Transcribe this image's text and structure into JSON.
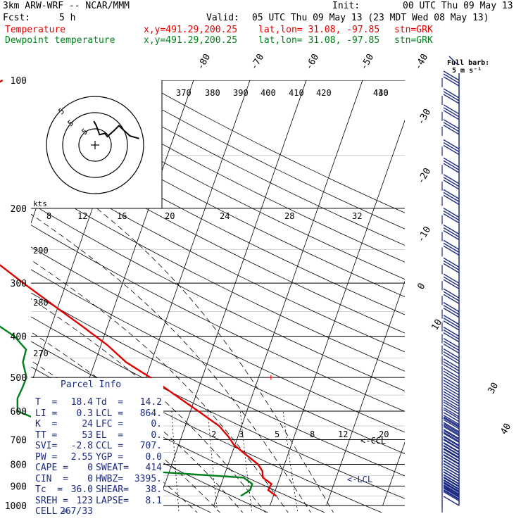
{
  "header": {
    "model": "3km ARW-WRF -- NCAR/MMM",
    "init_label": "Init:",
    "init": "00 UTC Thu 09 May 13",
    "fcst_label": "Fcst:",
    "fcst": "5 h",
    "valid_label": "Valid:",
    "valid": "05 UTC Thu 09 May 13 (23 MDT Wed 08 May 13)",
    "temp_label": "Temperature",
    "dew_label": "Dewpoint temperature",
    "xy": "x,y=491.29,200.25",
    "latlon": "lat,lon= 31.08, -97.85",
    "stn": "stn=GRK",
    "barb_legend": "Full barb:",
    "barb_unit": "5 m s⁻¹"
  },
  "colors": {
    "temperature": "#e00000",
    "dewpoint": "#00801a",
    "hodograph": "#000000",
    "barbs": "#1c2a80",
    "indices": "#1c2a80"
  },
  "parcel_info": {
    "title": "Parcel Info",
    "rows": [
      [
        "T  =",
        "18.4",
        "Td  =",
        "14.2"
      ],
      [
        "LI =",
        "0.3",
        "LCL =",
        "864."
      ],
      [
        "K  =",
        "24",
        "LFC =",
        "0."
      ],
      [
        "TT =",
        "53",
        "EL  =",
        "0."
      ],
      [
        "SVI=",
        "-2.8",
        "CCL =",
        "707."
      ],
      [
        "PW =",
        "2.55",
        "YGP =",
        "0.0"
      ],
      [
        "CAPE =",
        "0",
        "SWEAT=",
        "414"
      ],
      [
        "CIN  =",
        "0",
        "HWBZ=",
        "3395."
      ],
      [
        "Tc  =",
        "36.0",
        "SHEAR=",
        "38."
      ],
      [
        "SREH =",
        "123",
        "LAPSE=",
        "8.1"
      ],
      [
        "CELL =",
        "267/33",
        "",
        ""
      ]
    ]
  },
  "annotations": {
    "ccl": "<-CCL",
    "lcl": "<-LCL",
    "hodo_units": "kts",
    "lcl_marker": "+"
  },
  "chart_data": {
    "type": "skewt-logp",
    "y_axis": {
      "name": "pressure",
      "scale": "log",
      "range": [
        1000,
        100
      ],
      "tick_labels": [
        "100",
        "200",
        "300",
        "400",
        "500",
        "600",
        "700",
        "800",
        "900",
        "1000"
      ]
    },
    "isotherm_labels": [
      "-80",
      "-70",
      "-60",
      "-50",
      "-40",
      "-30",
      "-20",
      "-10",
      "0",
      "10",
      "30",
      "40"
    ],
    "theta_labels": [
      "370",
      "380",
      "390",
      "400",
      "410",
      "420",
      "430",
      "440",
      "290",
      "280",
      "270"
    ],
    "mixing_ratio_labels": [
      "2",
      "3",
      "5",
      "8",
      "12",
      "20"
    ],
    "hodograph_ring_labels": [
      "8",
      "12",
      "16",
      "20",
      "24",
      "28",
      "32"
    ],
    "hodograph_inner_labels": [
      "5",
      "5",
      "5"
    ],
    "series": [
      {
        "name": "Temperature",
        "points": [
          {
            "p": 950,
            "t": 20.5
          },
          {
            "p": 920,
            "t": 18.7
          },
          {
            "p": 890,
            "t": 18.9
          },
          {
            "p": 860,
            "t": 17.0
          },
          {
            "p": 830,
            "t": 16.5
          },
          {
            "p": 800,
            "t": 15.3
          },
          {
            "p": 760,
            "t": 12.6
          },
          {
            "p": 720,
            "t": 9.8
          },
          {
            "p": 690,
            "t": 8.4
          },
          {
            "p": 650,
            "t": 6.0
          },
          {
            "p": 600,
            "t": 1.4
          },
          {
            "p": 550,
            "t": -3.7
          },
          {
            "p": 500,
            "t": -9.2
          },
          {
            "p": 460,
            "t": -14.5
          },
          {
            "p": 420,
            "t": -18.8
          },
          {
            "p": 380,
            "t": -24.3
          },
          {
            "p": 340,
            "t": -30.6
          },
          {
            "p": 300,
            "t": -37.6
          },
          {
            "p": 265,
            "t": -44.3
          },
          {
            "p": 235,
            "t": -50.0
          },
          {
            "p": 210,
            "t": -55.7
          },
          {
            "p": 190,
            "t": -61.1
          },
          {
            "p": 170,
            "t": -64.1
          },
          {
            "p": 155,
            "t": -66.5
          },
          {
            "p": 140,
            "t": -65.8
          },
          {
            "p": 130,
            "t": -64.5
          },
          {
            "p": 120,
            "t": -61.6
          },
          {
            "p": 113,
            "t": -59.3
          },
          {
            "p": 105,
            "t": -56.2
          },
          {
            "p": 100,
            "t": -53.9
          }
        ]
      },
      {
        "name": "Dewpoint temperature",
        "points": [
          {
            "p": 950,
            "t": 14.2
          },
          {
            "p": 920,
            "t": 15.5
          },
          {
            "p": 890,
            "t": 15.5
          },
          {
            "p": 860,
            "t": 13.6
          },
          {
            "p": 830,
            "t": -4.5
          },
          {
            "p": 790,
            "t": -7.0
          },
          {
            "p": 760,
            "t": -7.1
          },
          {
            "p": 730,
            "t": -10.7
          },
          {
            "p": 690,
            "t": -13.6
          },
          {
            "p": 650,
            "t": -21.6
          },
          {
            "p": 620,
            "t": -27.7
          },
          {
            "p": 600,
            "t": -30.7
          },
          {
            "p": 560,
            "t": -31.5
          },
          {
            "p": 530,
            "t": -31.3
          },
          {
            "p": 500,
            "t": -31.2
          },
          {
            "p": 460,
            "t": -32.8
          },
          {
            "p": 430,
            "t": -33.0
          },
          {
            "p": 400,
            "t": -35.9
          },
          {
            "p": 370,
            "t": -40.6
          },
          {
            "p": 350,
            "t": -45.8
          },
          {
            "p": 330,
            "t": -48.4
          },
          {
            "p": 300,
            "t": -51.2
          },
          {
            "p": 275,
            "t": -55.9
          },
          {
            "p": 250,
            "t": -61.0
          },
          {
            "p": 225,
            "t": -66.2
          },
          {
            "p": 200,
            "t": -71.8
          },
          {
            "p": 180,
            "t": -77.4
          },
          {
            "p": 165,
            "t": -82.6
          },
          {
            "p": 150,
            "t": -88.0
          },
          {
            "p": 140,
            "t": -90.0
          },
          {
            "p": 130,
            "t": -88.9
          },
          {
            "p": 120,
            "t": -86.6
          },
          {
            "p": 112,
            "t": -84.9
          },
          {
            "p": 106,
            "t": -83.8
          },
          {
            "p": 100,
            "t": -82.6
          }
        ]
      }
    ],
    "hodograph": [
      {
        "u": 13.6,
        "v": 2.0
      },
      {
        "u": 10.8,
        "v": 2.8
      },
      {
        "u": 8.8,
        "v": 4.6
      },
      {
        "u": 7.4,
        "v": 6.0
      },
      {
        "u": 6.0,
        "v": 4.6
      },
      {
        "u": 3.8,
        "v": 2.6
      },
      {
        "u": 3.0,
        "v": 3.6
      },
      {
        "u": 1.4,
        "v": 3.2
      },
      {
        "u": 0.4,
        "v": 6.0
      },
      {
        "u": -0.4,
        "v": 7.4
      }
    ],
    "wind_barbs": [
      {
        "p": 1000,
        "n": 1
      },
      {
        "p": 975,
        "n": 1
      },
      {
        "p": 950,
        "n": 2
      },
      {
        "p": 925,
        "n": 4
      },
      {
        "p": 900,
        "n": 5
      },
      {
        "p": 875,
        "n": 6
      },
      {
        "p": 850,
        "n": 7
      },
      {
        "p": 825,
        "n": 7
      },
      {
        "p": 800,
        "n": 6
      },
      {
        "p": 775,
        "n": 6
      },
      {
        "p": 750,
        "n": 5
      },
      {
        "p": 725,
        "n": 5
      },
      {
        "p": 700,
        "n": 4
      },
      {
        "p": 675,
        "n": 4
      },
      {
        "p": 650,
        "n": 4
      },
      {
        "p": 625,
        "n": 4
      },
      {
        "p": 600,
        "n": 3
      },
      {
        "p": 575,
        "n": 3
      },
      {
        "p": 550,
        "n": 3
      },
      {
        "p": 525,
        "n": 3
      },
      {
        "p": 500,
        "n": 3
      },
      {
        "p": 475,
        "n": 3
      },
      {
        "p": 450,
        "n": 3
      },
      {
        "p": 425,
        "n": 3
      },
      {
        "p": 400,
        "n": 3
      },
      {
        "p": 375,
        "n": 3
      },
      {
        "p": 350,
        "n": 3
      },
      {
        "p": 325,
        "n": 3
      },
      {
        "p": 300,
        "n": 3
      },
      {
        "p": 275,
        "n": 3
      },
      {
        "p": 250,
        "n": 3
      },
      {
        "p": 230,
        "n": 3
      },
      {
        "p": 210,
        "n": 3
      },
      {
        "p": 190,
        "n": 3
      },
      {
        "p": 175,
        "n": 3
      },
      {
        "p": 160,
        "n": 3
      },
      {
        "p": 145,
        "n": 3
      },
      {
        "p": 130,
        "n": 3
      },
      {
        "p": 120,
        "n": 3
      },
      {
        "p": 110,
        "n": 3
      },
      {
        "p": 100,
        "n": 3
      }
    ]
  }
}
